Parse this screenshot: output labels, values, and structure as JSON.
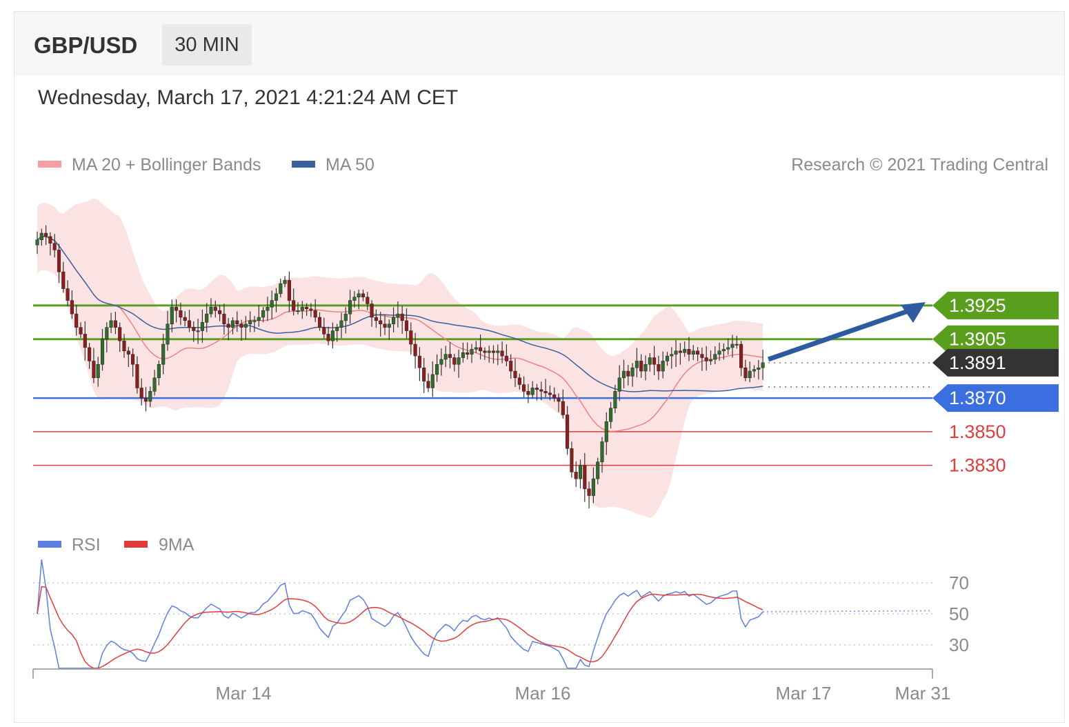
{
  "header": {
    "symbol": "GBP/USD",
    "timeframe": "30 MIN",
    "datetime": "Wednesday, March 17, 2021 4:21:24 AM CET"
  },
  "legend": {
    "ma20_bb": "MA 20 + Bollinger Bands",
    "ma50": "MA 50",
    "copyright": "Research © 2021 Trading Central",
    "rsi": "RSI",
    "rsi_ma": "9MA"
  },
  "colors": {
    "resistance": "#5a9e1e",
    "support": "#3b6fe0",
    "support_red": "#e03c3c",
    "current": "#333333",
    "bollinger_fill": "#fbdcdc",
    "ma20": "#f08080",
    "ma50": "#3a5f9e",
    "rsi": "#5b7fe0",
    "rsi_ma": "#e03c3c",
    "candle_up": "#2f6e2f",
    "candle_down": "#8a1f1f",
    "arrow": "#2e5aa0"
  },
  "chart_data": {
    "type": "candlestick",
    "title": "GBP/USD",
    "ylim": [
      1.3795,
      1.4
    ],
    "x_ticks": [
      "Mar 14",
      "Mar 16",
      "Mar 17",
      "Mar 31"
    ],
    "levels": [
      {
        "value": 1.3925,
        "label": "1.3925",
        "type": "resistance"
      },
      {
        "value": 1.3905,
        "label": "1.3905",
        "type": "resistance"
      },
      {
        "value": 1.3891,
        "label": "1.3891",
        "type": "current"
      },
      {
        "value": 1.387,
        "label": "1.3870",
        "type": "support"
      },
      {
        "value": 1.385,
        "label": "1.3850",
        "type": "support_red"
      },
      {
        "value": 1.383,
        "label": "1.3830",
        "type": "support_red"
      }
    ],
    "closes": [
      1.3964,
      1.3968,
      1.3966,
      1.3962,
      1.3958,
      1.3945,
      1.3935,
      1.3928,
      1.392,
      1.3912,
      1.3908,
      1.39,
      1.3892,
      1.3882,
      1.389,
      1.3905,
      1.3912,
      1.3916,
      1.3912,
      1.3904,
      1.3898,
      1.3896,
      1.389,
      1.3876,
      1.387,
      1.3868,
      1.3874,
      1.3882,
      1.389,
      1.3902,
      1.3914,
      1.3924,
      1.3922,
      1.3918,
      1.3916,
      1.3912,
      1.391,
      1.391,
      1.3915,
      1.392,
      1.3924,
      1.3922,
      1.392,
      1.3914,
      1.3912,
      1.3916,
      1.3914,
      1.3912,
      1.3914,
      1.3916,
      1.3916,
      1.3918,
      1.3922,
      1.3924,
      1.3928,
      1.3932,
      1.3938,
      1.394,
      1.3928,
      1.3922,
      1.3922,
      1.3924,
      1.3923,
      1.3922,
      1.3918,
      1.3912,
      1.3908,
      1.3904,
      1.391,
      1.3912,
      1.3916,
      1.392,
      1.3928,
      1.393,
      1.3932,
      1.393,
      1.3926,
      1.3918,
      1.3916,
      1.3914,
      1.3912,
      1.3914,
      1.3918,
      1.392,
      1.3916,
      1.391,
      1.3902,
      1.3895,
      1.3888,
      1.388,
      1.3876,
      1.3884,
      1.389,
      1.3893,
      1.3896,
      1.3894,
      1.389,
      1.3894,
      1.3897,
      1.3896,
      1.3899,
      1.39,
      1.3898,
      1.3897,
      1.3898,
      1.3897,
      1.3898,
      1.3895,
      1.3892,
      1.3886,
      1.3882,
      1.3878,
      1.3874,
      1.3872,
      1.3876,
      1.3875,
      1.3874,
      1.3873,
      1.3872,
      1.387,
      1.3868,
      1.386,
      1.384,
      1.3826,
      1.3822,
      1.383,
      1.3816,
      1.3812,
      1.3822,
      1.3832,
      1.3844,
      1.3856,
      1.3864,
      1.3874,
      1.3882,
      1.3886,
      1.3883,
      1.3888,
      1.3892,
      1.3886,
      1.389,
      1.3894,
      1.389,
      1.3886,
      1.3892,
      1.3895,
      1.3896,
      1.3898,
      1.3897,
      1.3899,
      1.3896,
      1.3898,
      1.3896,
      1.3894,
      1.3892,
      1.3893,
      1.3896,
      1.3898,
      1.3899,
      1.39,
      1.3902,
      1.3902,
      1.3888,
      1.3882,
      1.3886,
      1.3887,
      1.3888,
      1.3891
    ],
    "rsi_ylim": [
      10,
      90
    ],
    "rsi_levels": [
      70,
      50,
      30
    ],
    "rsi_forecast_end": 52
  }
}
